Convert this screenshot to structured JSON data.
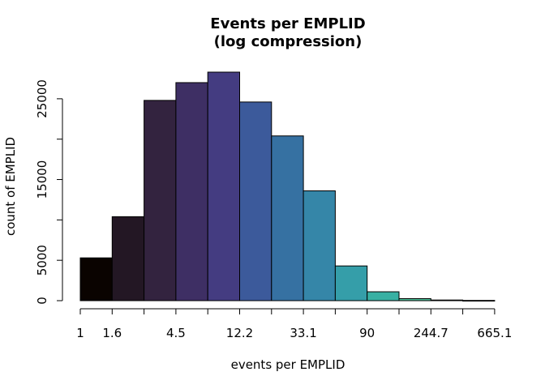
{
  "chart_data": {
    "type": "bar",
    "title": "Events per EMPLID",
    "subtitle": "(log compression)",
    "xlabel": "events per EMPLID",
    "ylabel": "count of EMPLID",
    "x_scale": "log",
    "bin_edges": [
      1,
      1.6,
      2.7,
      4.5,
      7.4,
      12.2,
      20.1,
      33.1,
      54.6,
      90,
      148.4,
      244.7,
      403.4,
      665.1
    ],
    "x_tick_labels": [
      "1",
      "1.6",
      "",
      "4.5",
      "",
      "12.2",
      "",
      "33.1",
      "",
      "90",
      "",
      "244.7",
      "",
      "665.1"
    ],
    "values": [
      5300,
      10400,
      24800,
      27000,
      28300,
      24600,
      20400,
      13600,
      4300,
      1100,
      250,
      80,
      30
    ],
    "colors": [
      "#0a0300",
      "#231724",
      "#33233f",
      "#3e2f64",
      "#443c81",
      "#3c5a9b",
      "#3671a2",
      "#3586a8",
      "#359ea9",
      "#38b0a3",
      "#4bc19a",
      "#8ecfa0",
      "#d3e0b7"
    ],
    "y_ticks": [
      0,
      5000,
      15000,
      25000
    ],
    "y_tick_labels": [
      "0",
      "5000",
      "15000",
      "25000"
    ],
    "y_minor_ticks": [
      10000,
      20000
    ],
    "ylim": [
      0,
      28300
    ],
    "grid": false,
    "legend": "none"
  }
}
